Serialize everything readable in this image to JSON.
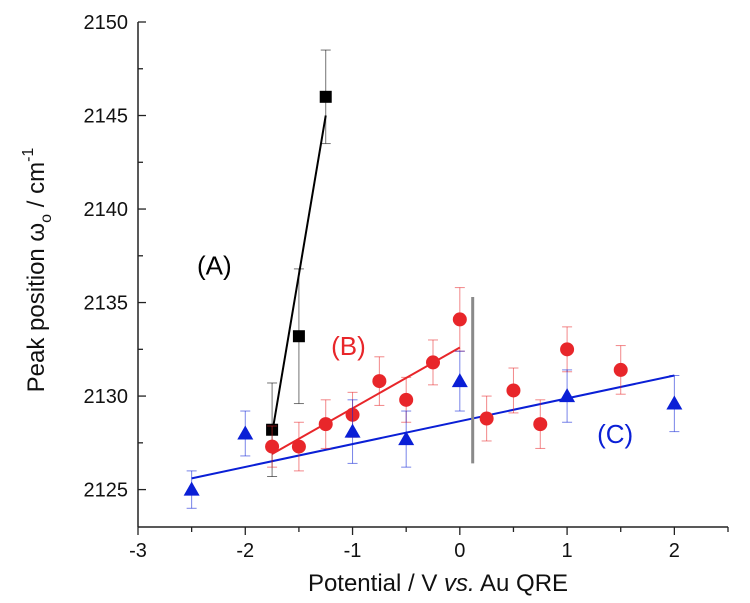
{
  "chart_data": {
    "type": "scatter",
    "title": "",
    "xlabel": {
      "prefix": "Potential / V ",
      "italic": "vs.",
      "suffix": " Au QRE"
    },
    "ylabel": {
      "prefix": "Peak position ",
      "omega": "ω",
      "sub": "o",
      "unit": " / cm",
      "sup": "-1"
    },
    "xlim": [
      -3,
      2.5
    ],
    "ylim": [
      2123,
      2150
    ],
    "x_ticks": [
      -3,
      -2,
      -1,
      0,
      1,
      2
    ],
    "y_ticks": [
      2125,
      2130,
      2135,
      2140,
      2145,
      2150
    ],
    "grid": false,
    "series": [
      {
        "label": "(A)",
        "color": "#000000",
        "marker": "square",
        "points": [
          {
            "x": -1.75,
            "y": 2128.2,
            "err": 2.5
          },
          {
            "x": -1.5,
            "y": 2133.2,
            "err": 3.6
          },
          {
            "x": -1.25,
            "y": 2146.0,
            "err": 2.5
          }
        ],
        "fit": [
          [
            -1.75,
            2128.0
          ],
          [
            -1.25,
            2145.0
          ]
        ]
      },
      {
        "label": "(B)",
        "color": "#e8262a",
        "marker": "circle",
        "points": [
          {
            "x": -1.75,
            "y": 2127.3,
            "err": 1.1
          },
          {
            "x": -1.5,
            "y": 2127.3,
            "err": 1.3
          },
          {
            "x": -1.25,
            "y": 2128.5,
            "err": 1.3
          },
          {
            "x": -1.0,
            "y": 2129.0,
            "err": 1.2
          },
          {
            "x": -0.75,
            "y": 2130.8,
            "err": 1.3
          },
          {
            "x": -0.5,
            "y": 2129.8,
            "err": 1.2
          },
          {
            "x": -0.25,
            "y": 2131.8,
            "err": 1.2
          },
          {
            "x": 0.0,
            "y": 2134.1,
            "err": 1.7
          },
          {
            "x": 0.25,
            "y": 2128.8,
            "err": 1.2
          },
          {
            "x": 0.5,
            "y": 2130.3,
            "err": 1.2
          },
          {
            "x": 0.75,
            "y": 2128.5,
            "err": 1.3
          },
          {
            "x": 1.0,
            "y": 2132.5,
            "err": 1.2
          },
          {
            "x": 1.5,
            "y": 2131.4,
            "err": 1.3
          }
        ],
        "fit": [
          [
            -1.75,
            2126.9
          ],
          [
            0.0,
            2132.6
          ]
        ]
      },
      {
        "label": "(C)",
        "color": "#0a1fd6",
        "marker": "triangle",
        "points": [
          {
            "x": -2.5,
            "y": 2125.0,
            "err": 1.0
          },
          {
            "x": -2.0,
            "y": 2128.0,
            "err": 1.2
          },
          {
            "x": -1.0,
            "y": 2128.1,
            "err": 1.7
          },
          {
            "x": -0.5,
            "y": 2127.7,
            "err": 1.5
          },
          {
            "x": 0.0,
            "y": 2130.8,
            "err": 1.6
          },
          {
            "x": 1.0,
            "y": 2130.0,
            "err": 1.4
          },
          {
            "x": 2.0,
            "y": 2129.6,
            "err": 1.5
          }
        ],
        "fit": [
          [
            -2.5,
            2125.6
          ],
          [
            2.0,
            2131.1
          ]
        ]
      }
    ],
    "vertical_marker": {
      "x": 0.12,
      "y_from": 2126.4,
      "y_to": 2135.3,
      "color": "#8a8a8a"
    }
  }
}
